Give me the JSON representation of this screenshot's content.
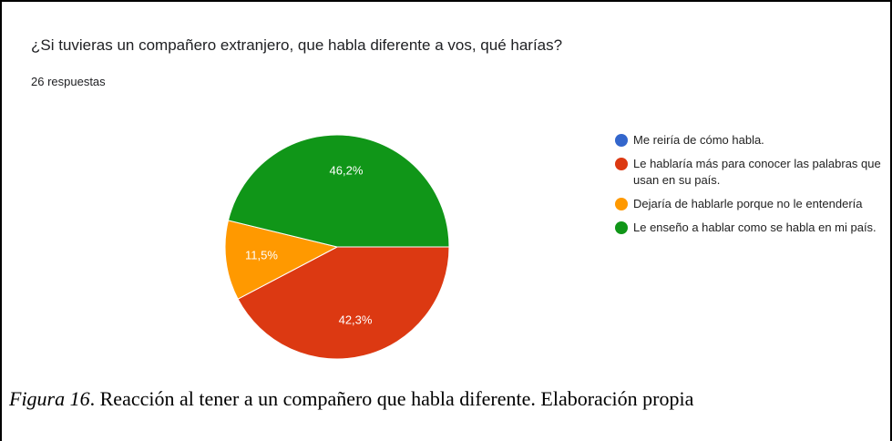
{
  "chart_data": {
    "type": "pie",
    "title": "¿Si tuvieras un compañero extranjero, que habla diferente a vos, qué harías?",
    "subtitle": "26 respuestas",
    "categories": [
      "Me reiría de cómo habla.",
      "Le hablaría más para conocer las palabras que usan en su país.",
      "Dejaría de hablarle porque no le entendería",
      "Le enseño a hablar como se habla en mi país."
    ],
    "values": [
      0,
      42.3,
      11.5,
      46.2
    ],
    "value_labels": [
      null,
      "42,3%",
      "11,5%",
      "46,2%"
    ],
    "colors": [
      "#3366cc",
      "#dc3912",
      "#ff9900",
      "#109618"
    ],
    "legend": "right"
  },
  "caption": {
    "figure": "Figura 16",
    "text": ". Reacción al tener a un compañero que habla diferente. Elaboración propia"
  }
}
